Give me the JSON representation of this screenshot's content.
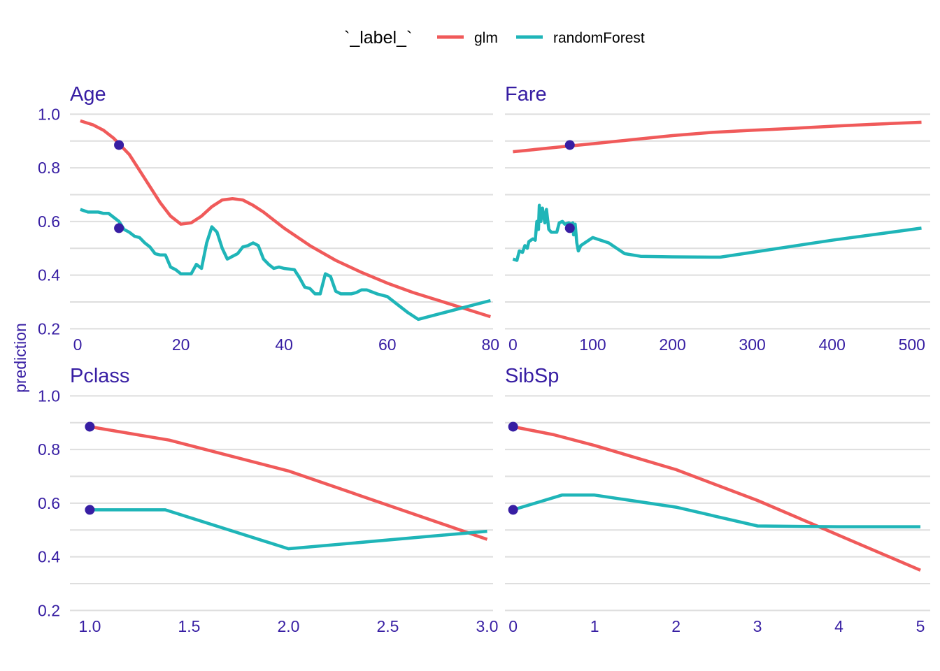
{
  "legend": {
    "title": "`_label_`",
    "items": [
      {
        "name": "glm",
        "color": "#f05a5a"
      },
      {
        "name": "randomForest",
        "color": "#1fb5b8"
      }
    ]
  },
  "ylabel": "prediction",
  "point_color": "#371ea3",
  "text_color": "#371ea3",
  "chart_data": [
    {
      "type": "line",
      "title": "Age",
      "xlim": [
        -1.5,
        80.5
      ],
      "ylim": [
        0.18,
        1.04
      ],
      "xticks": [
        {
          "v": 0,
          "label": "0"
        },
        {
          "v": 20,
          "label": "20"
        },
        {
          "v": 40,
          "label": "40"
        },
        {
          "v": 60,
          "label": "60"
        },
        {
          "v": 80,
          "label": "80"
        }
      ],
      "yticks": [
        {
          "v": 0.2,
          "label": "0.2"
        },
        {
          "v": 0.4,
          "label": "0.4"
        },
        {
          "v": 0.6,
          "label": "0.6"
        },
        {
          "v": 0.8,
          "label": "0.8"
        },
        {
          "v": 1.0,
          "label": "1.0"
        }
      ],
      "ygrid": [
        0.2,
        0.3,
        0.4,
        0.5,
        0.6,
        0.7,
        0.8,
        0.9,
        1.0
      ],
      "series": [
        {
          "name": "glm",
          "color": "#f05a5a",
          "points": [
            [
              0.5,
              0.975
            ],
            [
              3,
              0.96
            ],
            [
              5,
              0.94
            ],
            [
              7,
              0.91
            ],
            [
              10,
              0.85
            ],
            [
              12,
              0.79
            ],
            [
              14,
              0.73
            ],
            [
              16,
              0.67
            ],
            [
              18,
              0.62
            ],
            [
              20,
              0.59
            ],
            [
              22,
              0.595
            ],
            [
              24,
              0.62
            ],
            [
              26,
              0.655
            ],
            [
              28,
              0.68
            ],
            [
              30,
              0.685
            ],
            [
              32,
              0.68
            ],
            [
              34,
              0.66
            ],
            [
              36,
              0.635
            ],
            [
              38,
              0.605
            ],
            [
              40,
              0.575
            ],
            [
              45,
              0.51
            ],
            [
              50,
              0.455
            ],
            [
              55,
              0.41
            ],
            [
              60,
              0.37
            ],
            [
              65,
              0.335
            ],
            [
              70,
              0.305
            ],
            [
              75,
              0.275
            ],
            [
              80,
              0.245
            ]
          ]
        },
        {
          "name": "randomForest",
          "color": "#1fb5b8",
          "points": [
            [
              0.5,
              0.645
            ],
            [
              2,
              0.635
            ],
            [
              3,
              0.635
            ],
            [
              4,
              0.635
            ],
            [
              5,
              0.63
            ],
            [
              6,
              0.63
            ],
            [
              8,
              0.6
            ],
            [
              9,
              0.57
            ],
            [
              10,
              0.56
            ],
            [
              11,
              0.545
            ],
            [
              12,
              0.54
            ],
            [
              13,
              0.52
            ],
            [
              14,
              0.505
            ],
            [
              15,
              0.48
            ],
            [
              16,
              0.475
            ],
            [
              17,
              0.475
            ],
            [
              18,
              0.43
            ],
            [
              19,
              0.42
            ],
            [
              20,
              0.405
            ],
            [
              21,
              0.405
            ],
            [
              22,
              0.405
            ],
            [
              23,
              0.44
            ],
            [
              24,
              0.425
            ],
            [
              25,
              0.52
            ],
            [
              26,
              0.58
            ],
            [
              27,
              0.56
            ],
            [
              28,
              0.5
            ],
            [
              29,
              0.46
            ],
            [
              30,
              0.47
            ],
            [
              31,
              0.48
            ],
            [
              32,
              0.505
            ],
            [
              33,
              0.51
            ],
            [
              34,
              0.52
            ],
            [
              35,
              0.51
            ],
            [
              36,
              0.46
            ],
            [
              37,
              0.44
            ],
            [
              38,
              0.425
            ],
            [
              39,
              0.43
            ],
            [
              40,
              0.425
            ],
            [
              42,
              0.42
            ],
            [
              43,
              0.39
            ],
            [
              44,
              0.355
            ],
            [
              45,
              0.35
            ],
            [
              46,
              0.33
            ],
            [
              47,
              0.33
            ],
            [
              48,
              0.405
            ],
            [
              49,
              0.395
            ],
            [
              50,
              0.34
            ],
            [
              51,
              0.33
            ],
            [
              53,
              0.33
            ],
            [
              54,
              0.335
            ],
            [
              55,
              0.345
            ],
            [
              56,
              0.345
            ],
            [
              58,
              0.33
            ],
            [
              60,
              0.32
            ],
            [
              62,
              0.29
            ],
            [
              64,
              0.26
            ],
            [
              66,
              0.235
            ],
            [
              70,
              0.255
            ],
            [
              75,
              0.28
            ],
            [
              80,
              0.305
            ]
          ]
        }
      ],
      "observation": {
        "x": 8,
        "values": [
          0.885,
          0.575
        ]
      }
    },
    {
      "type": "line",
      "title": "Fare",
      "xlim": [
        -10,
        523
      ],
      "ylim": [
        0.18,
        1.04
      ],
      "xticks": [
        {
          "v": 0,
          "label": "0"
        },
        {
          "v": 100,
          "label": "100"
        },
        {
          "v": 200,
          "label": "200"
        },
        {
          "v": 300,
          "label": "300"
        },
        {
          "v": 400,
          "label": "400"
        },
        {
          "v": 500,
          "label": "500"
        }
      ],
      "yticks": [
        {
          "v": 0.2,
          "label": "0.2"
        },
        {
          "v": 0.4,
          "label": "0.4"
        },
        {
          "v": 0.6,
          "label": "0.6"
        },
        {
          "v": 0.8,
          "label": "0.8"
        },
        {
          "v": 1.0,
          "label": "1.0"
        }
      ],
      "ygrid": [
        0.2,
        0.3,
        0.4,
        0.5,
        0.6,
        0.7,
        0.8,
        0.9,
        1.0
      ],
      "show_ytick_labels": false,
      "series": [
        {
          "name": "glm",
          "color": "#f05a5a",
          "points": [
            [
              0,
              0.86
            ],
            [
              50,
              0.875
            ],
            [
              100,
              0.89
            ],
            [
              150,
              0.905
            ],
            [
              200,
              0.92
            ],
            [
              250,
              0.932
            ],
            [
              300,
              0.94
            ],
            [
              350,
              0.947
            ],
            [
              400,
              0.955
            ],
            [
              450,
              0.962
            ],
            [
              512,
              0.97
            ]
          ]
        },
        {
          "name": "randomForest",
          "color": "#1fb5b8",
          "points": [
            [
              0,
              0.46
            ],
            [
              5,
              0.455
            ],
            [
              8,
              0.49
            ],
            [
              12,
              0.485
            ],
            [
              15,
              0.51
            ],
            [
              18,
              0.5
            ],
            [
              20,
              0.525
            ],
            [
              25,
              0.535
            ],
            [
              28,
              0.53
            ],
            [
              30,
              0.6
            ],
            [
              32,
              0.57
            ],
            [
              33,
              0.66
            ],
            [
              35,
              0.6
            ],
            [
              37,
              0.65
            ],
            [
              40,
              0.595
            ],
            [
              42,
              0.645
            ],
            [
              45,
              0.57
            ],
            [
              48,
              0.56
            ],
            [
              55,
              0.56
            ],
            [
              58,
              0.595
            ],
            [
              62,
              0.6
            ],
            [
              65,
              0.59
            ],
            [
              70,
              0.595
            ],
            [
              73,
              0.59
            ],
            [
              75,
              0.595
            ],
            [
              76,
              0.55
            ],
            [
              78,
              0.59
            ],
            [
              80,
              0.52
            ],
            [
              82,
              0.49
            ],
            [
              85,
              0.51
            ],
            [
              90,
              0.52
            ],
            [
              100,
              0.54
            ],
            [
              120,
              0.52
            ],
            [
              140,
              0.48
            ],
            [
              160,
              0.47
            ],
            [
              200,
              0.468
            ],
            [
              260,
              0.467
            ],
            [
              300,
              0.485
            ],
            [
              400,
              0.53
            ],
            [
              512,
              0.575
            ]
          ]
        }
      ],
      "observation": {
        "x": 71.3,
        "values": [
          0.885,
          0.575
        ]
      }
    },
    {
      "type": "line",
      "title": "Pclass",
      "xlim": [
        0.9,
        3.03
      ],
      "ylim": [
        0.18,
        1.04
      ],
      "xticks": [
        {
          "v": 1.0,
          "label": "1.0"
        },
        {
          "v": 1.5,
          "label": "1.5"
        },
        {
          "v": 2.0,
          "label": "2.0"
        },
        {
          "v": 2.5,
          "label": "2.5"
        },
        {
          "v": 3.0,
          "label": "3.0"
        }
      ],
      "yticks": [
        {
          "v": 0.2,
          "label": "0.2"
        },
        {
          "v": 0.4,
          "label": "0.4"
        },
        {
          "v": 0.6,
          "label": "0.6"
        },
        {
          "v": 0.8,
          "label": "0.8"
        },
        {
          "v": 1.0,
          "label": "1.0"
        }
      ],
      "ygrid": [
        0.2,
        0.3,
        0.4,
        0.5,
        0.6,
        0.7,
        0.8,
        0.9,
        1.0
      ],
      "series": [
        {
          "name": "glm",
          "color": "#f05a5a",
          "points": [
            [
              1.0,
              0.885
            ],
            [
              1.4,
              0.835
            ],
            [
              2.0,
              0.72
            ],
            [
              3.0,
              0.465
            ]
          ]
        },
        {
          "name": "randomForest",
          "color": "#1fb5b8",
          "points": [
            [
              1.0,
              0.575
            ],
            [
              1.38,
              0.575
            ],
            [
              2.0,
              0.43
            ],
            [
              3.0,
              0.495
            ]
          ]
        }
      ],
      "observation": {
        "x": 1.0,
        "values": [
          0.885,
          0.575
        ]
      }
    },
    {
      "type": "line",
      "title": "SibSp",
      "xlim": [
        -0.1,
        5.12
      ],
      "ylim": [
        0.18,
        1.04
      ],
      "xticks": [
        {
          "v": 0,
          "label": "0"
        },
        {
          "v": 1,
          "label": "1"
        },
        {
          "v": 2,
          "label": "2"
        },
        {
          "v": 3,
          "label": "3"
        },
        {
          "v": 4,
          "label": "4"
        },
        {
          "v": 5,
          "label": "5"
        }
      ],
      "yticks": [
        {
          "v": 0.2,
          "label": "0.2"
        },
        {
          "v": 0.4,
          "label": "0.4"
        },
        {
          "v": 0.6,
          "label": "0.6"
        },
        {
          "v": 0.8,
          "label": "0.8"
        },
        {
          "v": 1.0,
          "label": "1.0"
        }
      ],
      "ygrid": [
        0.2,
        0.3,
        0.4,
        0.5,
        0.6,
        0.7,
        0.8,
        0.9,
        1.0
      ],
      "show_ytick_labels": false,
      "series": [
        {
          "name": "glm",
          "color": "#f05a5a",
          "points": [
            [
              0,
              0.885
            ],
            [
              0.5,
              0.855
            ],
            [
              1,
              0.815
            ],
            [
              2,
              0.725
            ],
            [
              3,
              0.61
            ],
            [
              4,
              0.48
            ],
            [
              5,
              0.35
            ]
          ]
        },
        {
          "name": "randomForest",
          "color": "#1fb5b8",
          "points": [
            [
              0,
              0.575
            ],
            [
              0.6,
              0.63
            ],
            [
              1,
              0.63
            ],
            [
              2,
              0.585
            ],
            [
              3,
              0.515
            ],
            [
              4,
              0.512
            ],
            [
              5,
              0.512
            ]
          ]
        }
      ],
      "observation": {
        "x": 0,
        "values": [
          0.885,
          0.575
        ]
      }
    }
  ]
}
